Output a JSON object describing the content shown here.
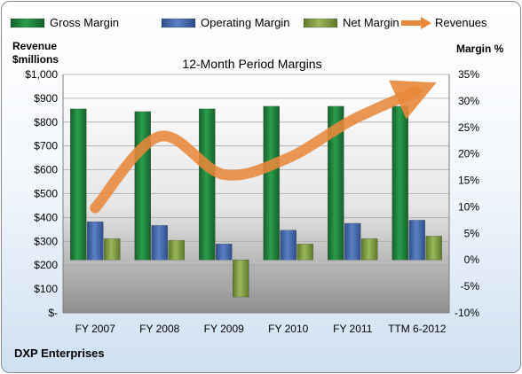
{
  "chart_data": {
    "type": "bar",
    "title": "12-Month Period Margins",
    "left_axis_title_line1": "Revenue",
    "left_axis_title_line2": "$millions",
    "right_axis_title": "Margin %",
    "company": "DXP Enterprises",
    "categories": [
      "FY 2007",
      "FY 2008",
      "FY 2009",
      "FY 2010",
      "FY 2011",
      "TTM 6-2012"
    ],
    "left_axis": {
      "ylim": [
        0,
        1000
      ],
      "ticks": [
        "$-",
        "$100",
        "$200",
        "$300",
        "$400",
        "$500",
        "$600",
        "$700",
        "$800",
        "$900",
        "$1,000"
      ]
    },
    "right_axis": {
      "ylim": [
        -10,
        35
      ],
      "ticks": [
        "-10%",
        "-5%",
        "0%",
        "5%",
        "10%",
        "15%",
        "20%",
        "25%",
        "30%",
        "35%"
      ]
    },
    "series": [
      {
        "name": "Gross Margin",
        "axis": "right",
        "color": "#1e8a3e",
        "values": [
          28.5,
          28.0,
          28.5,
          29.0,
          29.0,
          29.0
        ]
      },
      {
        "name": "Operating Margin",
        "axis": "right",
        "color": "#4a6fb0",
        "values": [
          7.2,
          6.5,
          3.0,
          5.6,
          6.9,
          7.5
        ]
      },
      {
        "name": "Net Margin",
        "axis": "right",
        "color": "#8ea84a",
        "values": [
          4.0,
          3.7,
          -7.0,
          3.0,
          4.0,
          4.5
        ]
      },
      {
        "name": "Revenues",
        "axis": "left",
        "color": "#e8873a",
        "type": "line",
        "values": [
          440,
          740,
          580,
          650,
          810,
          930
        ]
      }
    ],
    "legend_position": "top",
    "grid": true
  }
}
